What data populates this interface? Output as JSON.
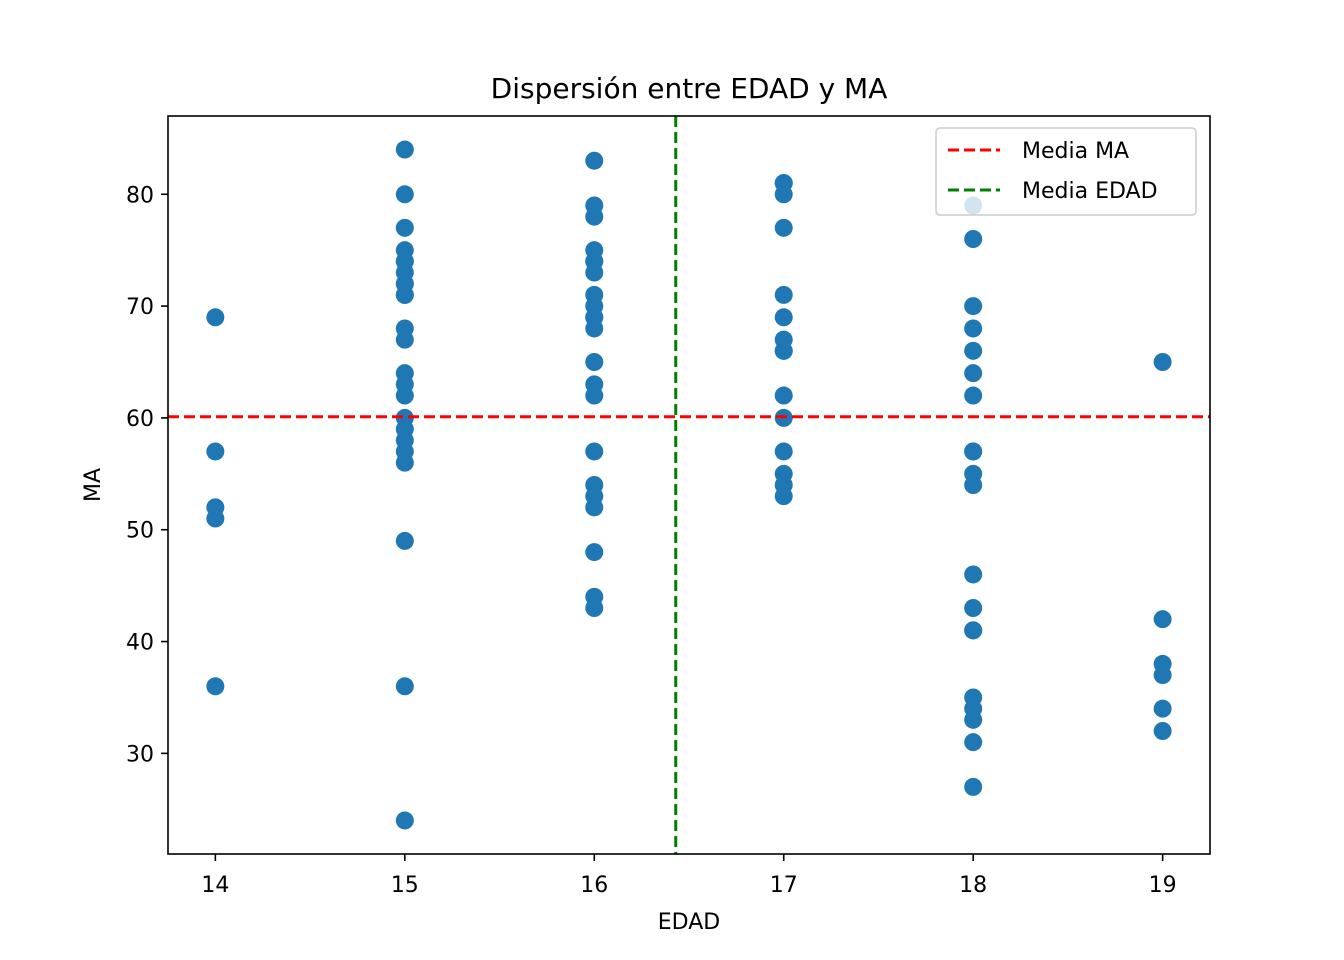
{
  "chart_data": {
    "type": "scatter",
    "title": "Dispersión entre EDAD y MA",
    "xlabel": "EDAD",
    "ylabel": "MA",
    "xlim": [
      13.75,
      19.25
    ],
    "ylim": [
      21.0,
      87.0
    ],
    "xticks": [
      14,
      15,
      16,
      17,
      18,
      19
    ],
    "yticks": [
      30,
      40,
      50,
      60,
      70,
      80
    ],
    "grid": false,
    "legend_position": "top-right",
    "marker_color": "#1f77b4",
    "series": [
      {
        "x": [
          14,
          14,
          14,
          14,
          14,
          15,
          15,
          15,
          15,
          15,
          15,
          15,
          15,
          15,
          15,
          15,
          15,
          15,
          15,
          15,
          15,
          15,
          15,
          15,
          15,
          15,
          15,
          15,
          15,
          16,
          16,
          16,
          16,
          16,
          16,
          16,
          16,
          16,
          16,
          16,
          16,
          16,
          16,
          16,
          16,
          16,
          16,
          16,
          16,
          16,
          16,
          17,
          17,
          17,
          17,
          17,
          17,
          17,
          17,
          17,
          17,
          17,
          17,
          17,
          17,
          17,
          18,
          18,
          18,
          18,
          18,
          18,
          18,
          18,
          18,
          18,
          18,
          18,
          18,
          18,
          18,
          18,
          18,
          18,
          18,
          18,
          19,
          19,
          19,
          19,
          19,
          19
        ],
        "y": [
          69,
          57,
          52,
          51,
          36,
          84,
          80,
          77,
          75,
          74,
          73,
          72,
          71,
          68,
          67,
          64,
          63,
          62,
          60,
          59,
          58,
          57,
          56,
          49,
          36,
          24,
          74,
          72,
          71,
          83,
          79,
          78,
          75,
          74,
          73,
          71,
          70,
          69,
          68,
          65,
          63,
          62,
          57,
          54,
          53,
          52,
          48,
          44,
          43,
          74,
          69,
          81,
          80,
          77,
          71,
          69,
          67,
          66,
          62,
          60,
          57,
          55,
          54,
          53,
          81,
          66,
          79,
          76,
          70,
          68,
          66,
          64,
          62,
          57,
          55,
          54,
          46,
          43,
          41,
          35,
          34,
          33,
          31,
          27,
          57,
          41,
          65,
          42,
          38,
          37,
          34,
          32
        ]
      }
    ],
    "reference_lines": [
      {
        "name": "Media MA",
        "orientation": "horizontal",
        "value": 60.1,
        "color": "#ff0000",
        "style": "dashed"
      },
      {
        "name": "Media EDAD",
        "orientation": "vertical",
        "value": 16.43,
        "color": "#008000",
        "style": "dashed"
      }
    ]
  }
}
